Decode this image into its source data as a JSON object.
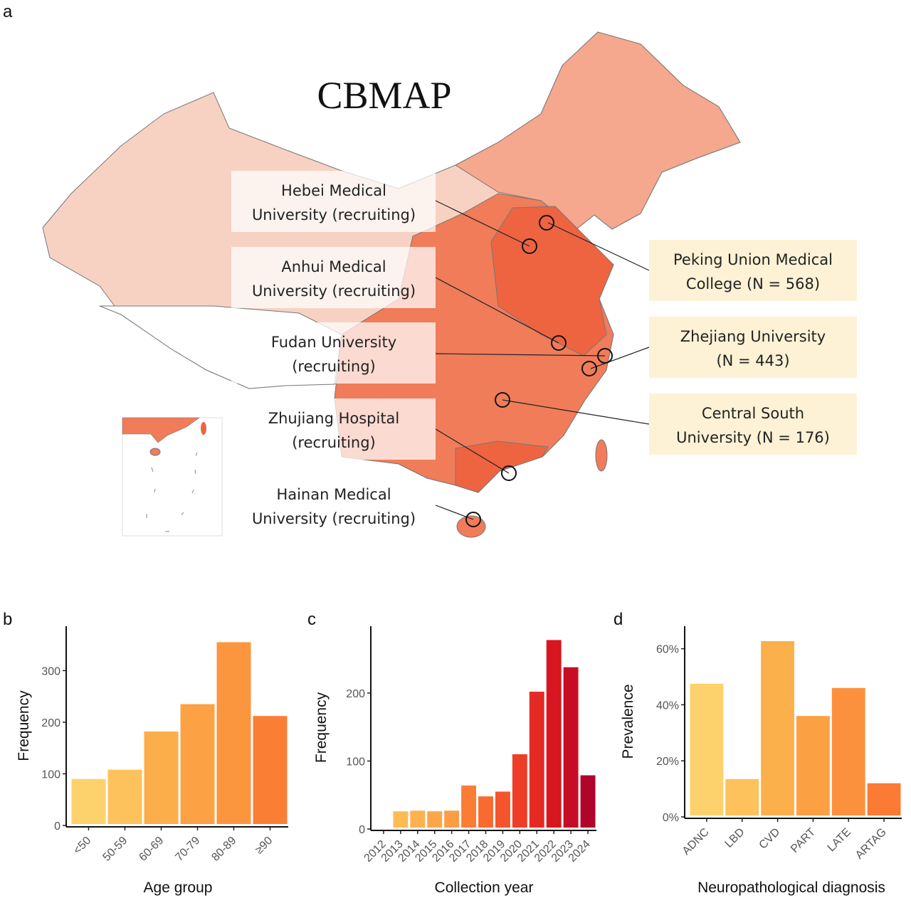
{
  "panel_a": {
    "letter": "a",
    "title": "CBMAP",
    "sites_left": [
      {
        "line1": "Hebei Medical",
        "line2": "University (recruiting)"
      },
      {
        "line1": "Anhui Medical",
        "line2": "University (recruiting)"
      },
      {
        "line1": "Fudan University",
        "line2": "(recruiting)"
      },
      {
        "line1": "Zhujiang Hospital",
        "line2": "(recruiting)"
      },
      {
        "line1": "Hainan Medical",
        "line2": "University (recruiting)"
      }
    ],
    "sites_right": [
      {
        "line1": "Peking Union Medical",
        "line2": "College (N = 568)"
      },
      {
        "line1": "Zhejiang University",
        "line2": "(N = 443)"
      },
      {
        "line1": "Central South",
        "line2": "University (N = 176)"
      }
    ],
    "colors": {
      "west": "#f7d2c3",
      "northeast": "#f5a88d",
      "east": "#f07c5a",
      "core": "#ee6440",
      "left_box": "#ffffff",
      "right_box": "#fdf2d5"
    }
  },
  "chart_data": [
    {
      "letter": "b",
      "type": "bar",
      "categories": [
        "<50",
        "50-59",
        "60-69",
        "70-79",
        "80-89",
        "≥90"
      ],
      "values": [
        90,
        108,
        182,
        235,
        355,
        212
      ],
      "xlabel": "Age group",
      "ylabel": "Frequency",
      "yticks": [
        0,
        100,
        200,
        300
      ],
      "ytick_labels": [
        "0",
        "100",
        "200",
        "300"
      ],
      "ylim": [
        0,
        375
      ],
      "colors": [
        "#fdd26d",
        "#fdc25c",
        "#fcae4b",
        "#fca144",
        "#fc963e",
        "#fb7e35"
      ]
    },
    {
      "letter": "c",
      "type": "bar",
      "categories": [
        "2012",
        "2013",
        "2014",
        "2015",
        "2016",
        "2017",
        "2018",
        "2019",
        "2020",
        "2021",
        "2022",
        "2023",
        "2024"
      ],
      "values": [
        2,
        26,
        27,
        26,
        27,
        64,
        48,
        55,
        110,
        202,
        278,
        238,
        79
      ],
      "xlabel": "Collection year",
      "ylabel": "Frequency",
      "yticks": [
        0,
        100,
        200
      ],
      "ytick_labels": [
        "0",
        "100",
        "200"
      ],
      "ylim": [
        0,
        290
      ],
      "colors": [
        "#fee7a0",
        "#fdbb55",
        "#fdb14f",
        "#fca64a",
        "#fc9d46",
        "#fb7d35",
        "#f96a31",
        "#f5552c",
        "#ef3e28",
        "#e52a24",
        "#d71620",
        "#c70d25",
        "#b1042b"
      ]
    },
    {
      "letter": "d",
      "type": "bar",
      "categories": [
        "ADNC",
        "LBD",
        "CVD",
        "PART",
        "LATE",
        "ARTAG"
      ],
      "values": [
        47.5,
        13.5,
        62.7,
        36,
        46,
        12
      ],
      "xlabel": "Neuropathological diagnosis",
      "ylabel": "Prevalence",
      "yticks": [
        0,
        20,
        40,
        60
      ],
      "ytick_labels": [
        "0%",
        "20%",
        "40%",
        "60%"
      ],
      "ylim": [
        0,
        66
      ],
      "colors": [
        "#fdd26d",
        "#fdc25c",
        "#fcb04b",
        "#fca044",
        "#fc913d",
        "#fb7b34"
      ]
    }
  ]
}
